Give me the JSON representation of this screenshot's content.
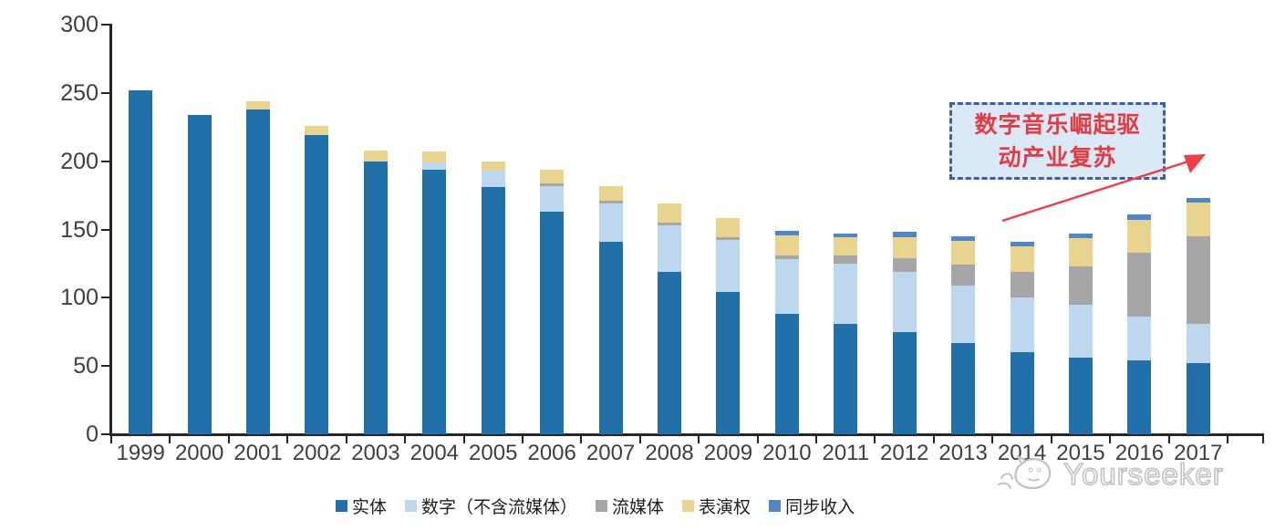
{
  "chart_data": {
    "type": "bar",
    "stacked": true,
    "title": "",
    "xlabel": "",
    "ylabel": "",
    "ylim": [
      0,
      300
    ],
    "yticks": [
      0,
      50,
      100,
      150,
      200,
      250,
      300
    ],
    "grid": false,
    "legend_position": "bottom",
    "categories": [
      "1999",
      "2000",
      "2001",
      "2002",
      "2003",
      "2004",
      "2005",
      "2006",
      "2007",
      "2008",
      "2009",
      "2010",
      "2011",
      "2012",
      "2013",
      "2014",
      "2015",
      "2016",
      "2017"
    ],
    "series": [
      {
        "name": "实体",
        "color": "#2170a9",
        "values": [
          252,
          234,
          238,
          219,
          200,
          194,
          181,
          163,
          141,
          119,
          104,
          88,
          81,
          75,
          67,
          60,
          56,
          54,
          52
        ]
      },
      {
        "name": "数字（不含流媒体）",
        "color": "#bdd7ee",
        "values": [
          0,
          0,
          0,
          0,
          0,
          5,
          12,
          19,
          28,
          34,
          38,
          40,
          44,
          44,
          42,
          40,
          39,
          32,
          29
        ]
      },
      {
        "name": "流媒体",
        "color": "#a6a6a6",
        "values": [
          0,
          0,
          0,
          0,
          0,
          0,
          0,
          2,
          2,
          2,
          2,
          3,
          6,
          10,
          15,
          19,
          28,
          47,
          64
        ]
      },
      {
        "name": "表演权",
        "color": "#e9d48f",
        "values": [
          0,
          0,
          6,
          7,
          8,
          8,
          7,
          10,
          11,
          14,
          14,
          15,
          13,
          15,
          18,
          19,
          21,
          24,
          25
        ]
      },
      {
        "name": "同步收入",
        "color": "#4f87c5",
        "values": [
          0,
          0,
          0,
          0,
          0,
          0,
          0,
          0,
          0,
          0,
          0,
          3,
          3,
          4,
          3,
          3,
          3,
          4,
          3
        ]
      }
    ]
  },
  "axis": {
    "line_color": "#262626",
    "tick_label_color": "#3f3f3f"
  },
  "annotation": {
    "text": "数字音乐崛起驱动产业复苏",
    "box_fill": "#dbe8f6",
    "border_color": "#3d5ea9",
    "text_color": "#e03c44",
    "arrow_color": "#ec3f47"
  },
  "watermark": {
    "text": "Yourseeker",
    "color": "#c2c2c2",
    "logo": "cat-doodle-icon"
  }
}
